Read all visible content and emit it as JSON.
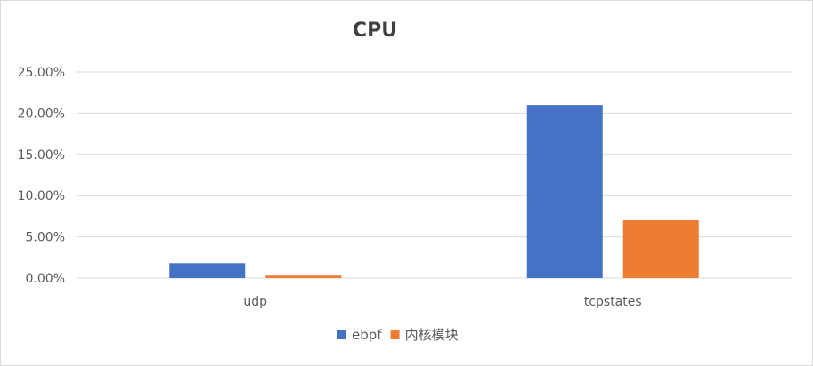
{
  "chart_data": {
    "type": "bar",
    "title": "CPU",
    "xlabel": "",
    "ylabel": "",
    "categories": [
      "udp",
      "tcpstates"
    ],
    "series": [
      {
        "name": "ebpf",
        "color": "#4472C4",
        "values": [
          1.8,
          21.0
        ]
      },
      {
        "name": "内核模块",
        "color": "#ED7D31",
        "values": [
          0.3,
          7.0
        ]
      }
    ],
    "ylim": [
      0,
      25
    ],
    "yticks": [
      0,
      5,
      10,
      15,
      20,
      25
    ],
    "ytick_labels": [
      "0.00%",
      "5.00%",
      "10.00%",
      "15.00%",
      "20.00%",
      "25.00%"
    ],
    "value_format": "percent",
    "grid": true,
    "legend": "bottom"
  }
}
